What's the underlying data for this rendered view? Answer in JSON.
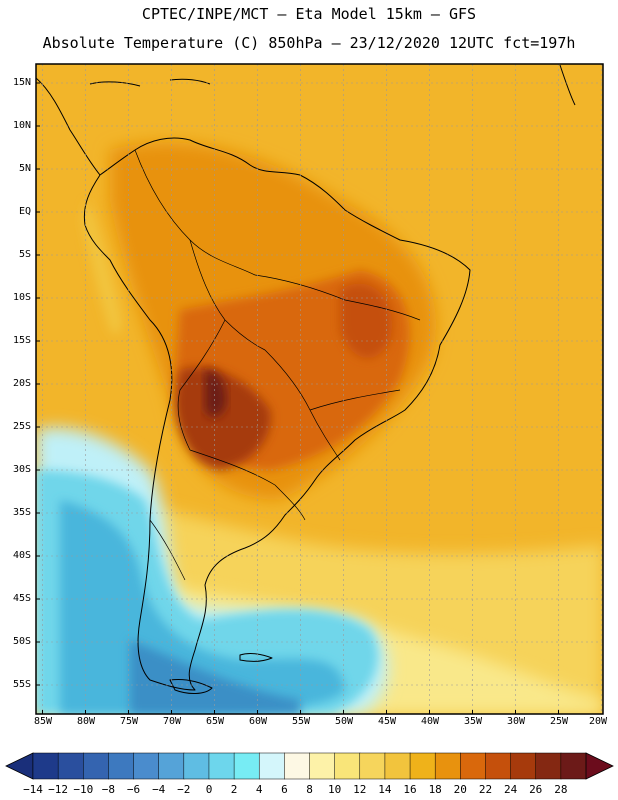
{
  "header": {
    "line1": "CPTEC/INPE/MCT –  Eta Model 15km – GFS",
    "line2": "Absolute Temperature (C) 850hPa – 23/12/2020 12UTC fct=197h"
  },
  "map": {
    "lat_labels": [
      "15N",
      "10N",
      "5N",
      "EQ",
      "5S",
      "10S",
      "15S",
      "20S",
      "25S",
      "30S",
      "35S",
      "40S",
      "45S",
      "50S",
      "55S"
    ],
    "lon_labels": [
      "85W",
      "80W",
      "75W",
      "70W",
      "65W",
      "60W",
      "55W",
      "50W",
      "45W",
      "40W",
      "35W",
      "30W",
      "25W",
      "20W"
    ]
  },
  "colorbar": {
    "labels": [
      "-14",
      "-12",
      "-10",
      "-8",
      "-6",
      "-4",
      "-2",
      "0",
      "2",
      "4",
      "6",
      "8",
      "10",
      "12",
      "14",
      "16",
      "18",
      "20",
      "22",
      "24",
      "26",
      "28"
    ],
    "colors": [
      "#1e3a8a",
      "#2a4f9e",
      "#3464b0",
      "#3d79bf",
      "#4a8ccd",
      "#55a3d8",
      "#5fbde3",
      "#6dd6ec",
      "#77ecf4",
      "#d4f6fb",
      "#fdf8e4",
      "#fdf2a8",
      "#f9e579",
      "#f6d55c",
      "#f2c43d",
      "#efb21a",
      "#e8920e",
      "#d9680c",
      "#c5500c",
      "#a63a0c",
      "#842812",
      "#6c1a18"
    ],
    "under_color": "#1a2f7a",
    "over_color": "#6b0c1c"
  }
}
